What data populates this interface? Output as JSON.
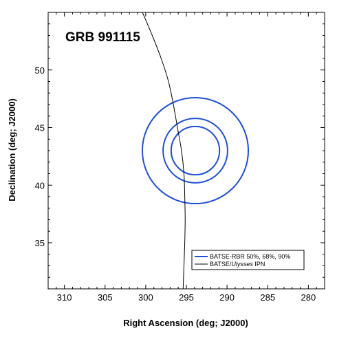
{
  "chart_data": {
    "type": "scatter",
    "title": "GRB 991115",
    "xlabel": "Right Ascension (deg; J2000)",
    "ylabel": "Declination (deg; J2000)",
    "xlim": [
      312,
      278
    ],
    "ylim": [
      31,
      55
    ],
    "x_reversed": true,
    "x_ticks": [
      310,
      305,
      300,
      295,
      290,
      285,
      280
    ],
    "y_ticks": [
      35,
      40,
      45,
      50
    ],
    "grid": false,
    "legend_position": "bottom-right",
    "series": [
      {
        "name": "BATSE-RBR 50%, 68%, 90%",
        "kind": "confidence-contours",
        "color": "#1f4fd6",
        "center": {
          "ra": 293.9,
          "dec": 43.0
        },
        "contours": [
          {
            "level": "50%",
            "radius_dec": 2.1
          },
          {
            "level": "68%",
            "radius_dec": 2.8
          },
          {
            "level": "90%",
            "radius_dec": 4.6
          }
        ]
      },
      {
        "name": "BATSE/Ulysses IPN",
        "kind": "annulus",
        "color": "#000000",
        "points": [
          {
            "ra": 300.4,
            "dec": 55.0
          },
          {
            "ra": 299.2,
            "dec": 53.0
          },
          {
            "ra": 298.1,
            "dec": 51.0
          },
          {
            "ra": 297.2,
            "dec": 49.0
          },
          {
            "ra": 296.6,
            "dec": 47.0
          },
          {
            "ra": 296.1,
            "dec": 45.0
          },
          {
            "ra": 295.6,
            "dec": 43.0
          },
          {
            "ra": 295.3,
            "dec": 41.0
          },
          {
            "ra": 295.2,
            "dec": 39.0
          },
          {
            "ra": 295.15,
            "dec": 37.0
          },
          {
            "ra": 295.2,
            "dec": 35.0
          },
          {
            "ra": 295.3,
            "dec": 33.0
          },
          {
            "ra": 295.4,
            "dec": 31.0
          }
        ]
      }
    ],
    "legend": {
      "entries": [
        {
          "label": "BATSE-RBR 50%, 68%, 90%",
          "color": "#1f4fd6"
        },
        {
          "label_prefix": "BATSE/",
          "label_italic": "Ulysses",
          "label_suffix": " IPN",
          "color": "#000000"
        }
      ]
    }
  }
}
